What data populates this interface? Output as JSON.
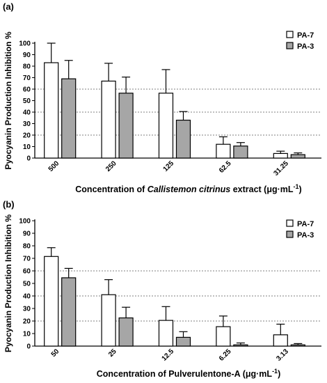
{
  "colors": {
    "pa7_fill": "#ffffff",
    "pa3_fill": "#a6a6a6",
    "stroke": "#000000",
    "grid": "#555555"
  },
  "chart_data": [
    {
      "type": "bar",
      "panel": "(a)",
      "categories": [
        "500",
        "250",
        "125",
        "62.5",
        "31.25"
      ],
      "series": [
        {
          "name": "PA-7",
          "values": [
            83,
            67,
            56.5,
            12,
            4
          ],
          "errors": [
            17,
            15.5,
            20.5,
            6.5,
            2
          ]
        },
        {
          "name": "PA-3",
          "values": [
            69,
            56.5,
            33,
            10.5,
            3
          ],
          "errors": [
            16,
            14,
            7.5,
            3,
            1.5
          ]
        }
      ],
      "ylabel": "Pyocyanin Production  Inhibition %",
      "xlabel": {
        "pre": "Concentration of ",
        "italic": "Callistemon citrinus",
        "post": " extract  (μg·mL",
        "sup": "-1",
        "close": ")"
      },
      "ylim": [
        0,
        100
      ],
      "yticks": [
        0,
        10,
        20,
        30,
        40,
        50,
        60,
        70,
        80,
        90,
        100
      ],
      "gridlines": [
        20,
        40,
        60
      ],
      "legend": "top-right"
    },
    {
      "type": "bar",
      "panel": "(b)",
      "categories": [
        "50",
        "25",
        "12.5",
        "6.25",
        "3.13"
      ],
      "series": [
        {
          "name": "PA-7",
          "values": [
            71.5,
            41,
            20.5,
            15.5,
            9
          ],
          "errors": [
            7,
            12,
            11,
            8.5,
            8.5
          ]
        },
        {
          "name": "PA-3",
          "values": [
            54.5,
            22.5,
            7,
            1,
            1
          ],
          "errors": [
            7.5,
            8.5,
            4.5,
            1.5,
            1
          ]
        }
      ],
      "ylabel": "Pyocyanin Production  Inhibition %",
      "xlabel": {
        "pre": "Concentration of Pulverulentone-A  (μg·mL",
        "italic": "",
        "post": "",
        "sup": "-1",
        "close": ")"
      },
      "ylim": [
        0,
        100
      ],
      "yticks": [
        0,
        10,
        20,
        30,
        40,
        50,
        60,
        70,
        80,
        90,
        100
      ],
      "gridlines": [
        20,
        40,
        60
      ],
      "legend": "top-right"
    }
  ]
}
